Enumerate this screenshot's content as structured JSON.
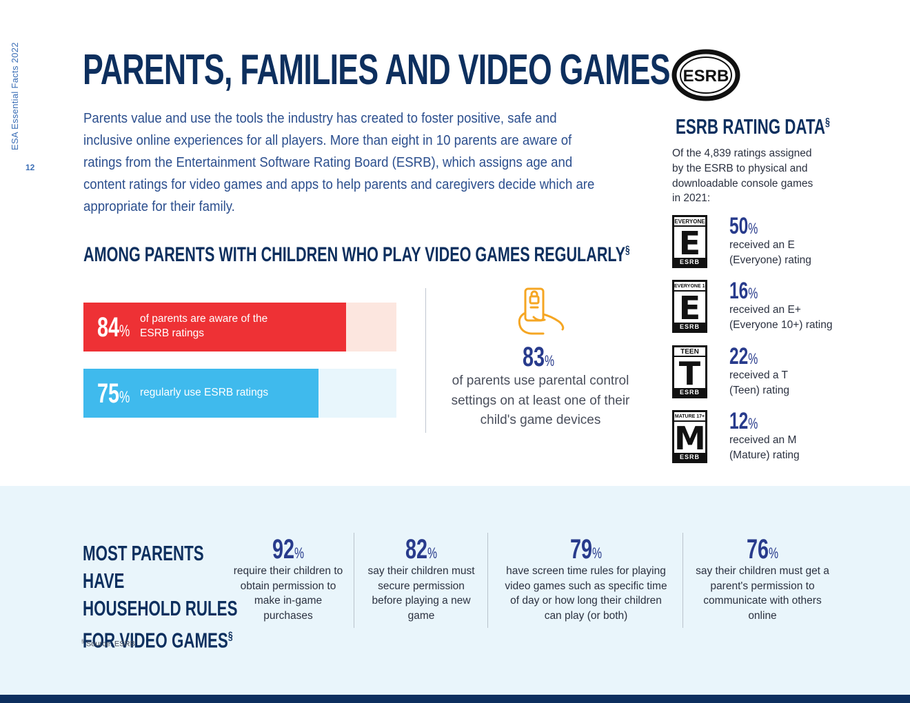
{
  "side": {
    "label": "ESA Essential Facts 2022",
    "page_number": "12"
  },
  "title": "PARENTS, FAMILIES AND VIDEO GAMES",
  "intro": "Parents value and use the tools the industry has created to foster positive, safe and inclusive online experiences for all players. More than eight in 10 parents are aware of ratings from the Entertainment Software Rating Board (ESRB), which assigns age and content ratings for video games and apps to help parents and caregivers decide which are appropriate for their family.",
  "among_heading": "AMONG PARENTS WITH CHILDREN WHO PLAY VIDEO GAMES REGULARLY",
  "among_mark": "§",
  "bars": [
    {
      "value": "84",
      "pct": "%",
      "label": "of parents are aware of the ESRB ratings",
      "fraction": 0.84,
      "color": "#ee3135",
      "bg": "#fce6df"
    },
    {
      "value": "75",
      "pct": "%",
      "label": "regularly use ESRB ratings",
      "fraction": 0.75,
      "color": "#3fbaed",
      "bg": "#e8f6fc"
    }
  ],
  "parental_control": {
    "value": "83",
    "pct": "%",
    "text": "of parents use parental control settings on at least one of their child's game devices",
    "icon": "phone-hand-icon",
    "icon_color": "#f5a623"
  },
  "esrb": {
    "logo": "ESRB",
    "heading": "ESRB RATING DATA",
    "mark": "§",
    "intro": "Of the 4,839 ratings assigned by the ESRB to physical and downloadable console games in 2021:",
    "ratings": [
      {
        "badge_top": "EVERYONE",
        "letter": "E",
        "badge_bottom": "ESRB",
        "value": "50",
        "pct": "%",
        "line1": "received an E",
        "line2": "(Everyone) rating"
      },
      {
        "badge_top": "EVERYONE 10+",
        "letter": "E",
        "badge_bottom": "ESRB",
        "value": "16",
        "pct": "%",
        "line1": "received an E+",
        "line2": "(Everyone 10+) rating"
      },
      {
        "badge_top": "TEEN",
        "letter": "T",
        "badge_bottom": "ESRB",
        "value": "22",
        "pct": "%",
        "line1": "received a T",
        "line2": "(Teen) rating"
      },
      {
        "badge_top": "MATURE 17+",
        "letter": "M",
        "badge_bottom": "ESRB",
        "value": "12",
        "pct": "%",
        "line1": "received an M",
        "line2": "(Mature) rating"
      }
    ]
  },
  "rules": {
    "heading_lines": [
      "MOST PARENTS HAVE",
      "HOUSEHOLD RULES",
      "FOR VIDEO GAMES"
    ],
    "mark": "§",
    "stats": [
      {
        "value": "92",
        "pct": "%",
        "text": "require their children to obtain permission to make in-game purchases"
      },
      {
        "value": "82",
        "pct": "%",
        "text": "say their children must secure permission before playing a new game"
      },
      {
        "value": "79",
        "pct": "%",
        "text": "have screen time rules for playing video games such as specific time of day or how long their children can play (or both)"
      },
      {
        "value": "76",
        "pct": "%",
        "text": "say their children must get a parent's permission to communicate with others online"
      }
    ]
  },
  "source": {
    "mark": "§",
    "text": "Source: ESRB"
  }
}
